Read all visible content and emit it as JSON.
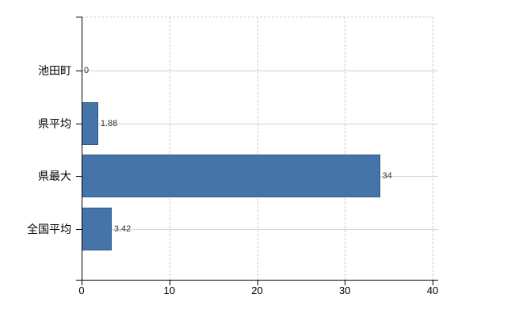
{
  "chart_data": {
    "type": "bar",
    "orientation": "horizontal",
    "categories": [
      "池田町",
      "県平均",
      "県最大",
      "全国平均"
    ],
    "values": [
      0,
      1.88,
      34,
      3.42
    ],
    "value_labels": [
      "0",
      "1.88",
      "34",
      "3.42"
    ],
    "xlim": [
      0,
      40
    ],
    "x_tick_values": [
      0,
      10,
      20,
      30,
      40
    ],
    "x_tick_labels": [
      "0",
      "10",
      "20",
      "30",
      "40"
    ],
    "grid": true,
    "legend_position": "none",
    "colors": {
      "bar_fill": "#4574a9",
      "bar_border": "#2c578d",
      "axis": "#000000",
      "gridline_horizontal": "#ccd3cc",
      "gridline_vertical": "#c7cec7",
      "background": "#ffffff",
      "value_label": "#333333",
      "tick_label": "#000000"
    }
  }
}
